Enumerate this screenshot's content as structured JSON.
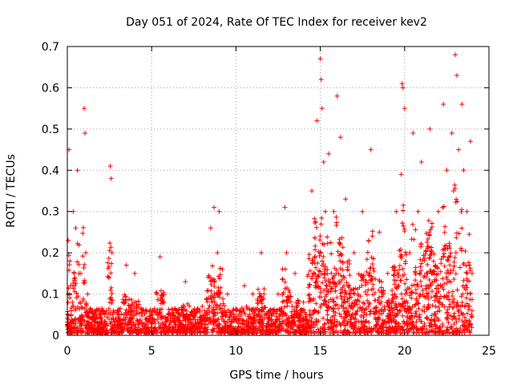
{
  "chart_data": {
    "type": "scatter",
    "title": "Day 051 of 2024, Rate Of TEC Index for receiver kev2",
    "xlabel": "GPS time / hours",
    "ylabel": "ROTI / TECUs",
    "xlim": [
      0,
      25
    ],
    "ylim": [
      0,
      0.7
    ],
    "x_ticks": [
      "0",
      "5",
      "10",
      "15",
      "20",
      "25"
    ],
    "y_ticks": [
      "0",
      "0.1",
      "0.2",
      "0.3",
      "0.4",
      "0.5",
      "0.6",
      "0.7"
    ],
    "grid": true,
    "marker": "+",
    "color": "#ff0000",
    "series": [
      {
        "x": [
          0.02,
          0.05,
          0.1,
          0.15,
          0.2,
          0.3,
          0.35,
          0.5,
          0.6,
          0.8,
          1.0,
          1.05,
          1.1,
          1.2,
          1.5,
          1.8,
          2.0,
          2.2,
          2.55,
          2.6,
          2.65,
          3.0,
          3.5,
          4.0,
          4.5,
          5.0,
          5.5,
          6.0,
          6.5,
          7.0,
          7.5,
          8.0,
          8.5,
          8.7,
          8.9,
          9.0,
          9.2,
          9.5,
          10.0,
          10.5,
          11.0,
          11.5,
          12.0,
          12.5,
          12.9,
          13.0,
          13.5,
          14.0,
          14.5,
          14.8,
          15.0,
          15.05,
          15.1,
          15.2,
          15.3,
          15.5,
          15.8,
          16.0,
          16.2,
          16.5,
          17.0,
          17.5,
          18.0,
          18.5,
          19.0,
          19.5,
          19.8,
          19.85,
          19.9,
          20.0,
          20.3,
          20.5,
          20.8,
          21.0,
          21.5,
          22.0,
          22.3,
          22.5,
          22.8,
          22.9,
          23.0,
          23.1,
          23.2,
          23.4,
          23.5,
          23.7,
          23.9,
          24.0
        ],
        "y": [
          0.02,
          0.23,
          0.45,
          0.18,
          0.12,
          0.08,
          0.3,
          0.26,
          0.4,
          0.15,
          0.55,
          0.49,
          0.2,
          0.1,
          0.06,
          0.04,
          0.05,
          0.03,
          0.41,
          0.38,
          0.2,
          0.05,
          0.17,
          0.15,
          0.06,
          0.04,
          0.19,
          0.05,
          0.06,
          0.13,
          0.05,
          0.07,
          0.26,
          0.31,
          0.2,
          0.3,
          0.16,
          0.1,
          0.06,
          0.12,
          0.1,
          0.2,
          0.06,
          0.1,
          0.31,
          0.2,
          0.15,
          0.08,
          0.35,
          0.52,
          0.67,
          0.62,
          0.55,
          0.42,
          0.3,
          0.44,
          0.3,
          0.58,
          0.48,
          0.33,
          0.2,
          0.3,
          0.45,
          0.25,
          0.15,
          0.3,
          0.39,
          0.61,
          0.6,
          0.55,
          0.2,
          0.49,
          0.3,
          0.42,
          0.5,
          0.3,
          0.56,
          0.4,
          0.49,
          0.35,
          0.68,
          0.63,
          0.45,
          0.56,
          0.4,
          0.3,
          0.47,
          0.15
        ]
      }
    ]
  }
}
